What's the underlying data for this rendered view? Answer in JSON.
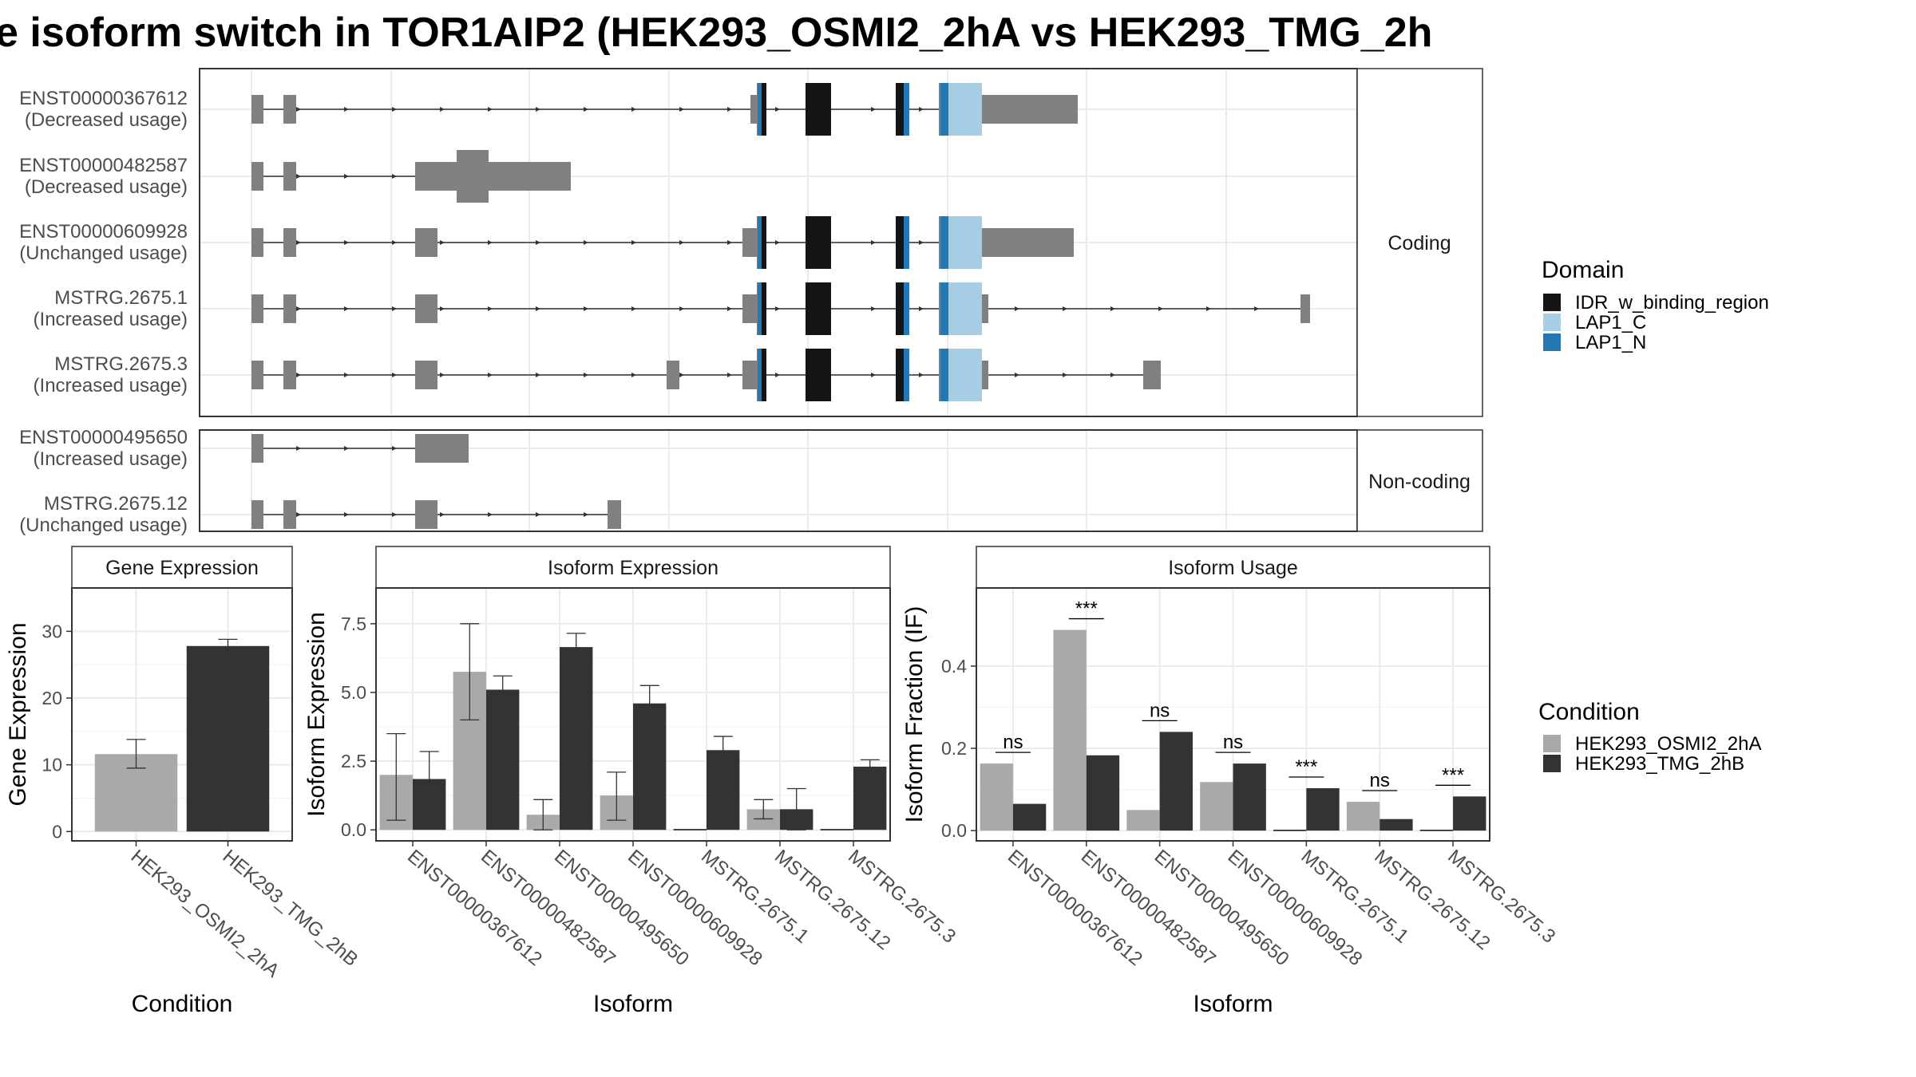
{
  "title": "e isoform switch in TOR1AIP2 (HEK293_OSMI2_2hA vs HEK293_TMG_2h",
  "colors": {
    "exon": "#808080",
    "IDR_w_binding_region": "#151515",
    "LAP1_C": "#a6cde3",
    "LAP1_N": "#2478b3",
    "HEK293_OSMI2_2hA": "#a9a9a9",
    "HEK293_TMG_2hB": "#333333",
    "grid": "#ebebeb",
    "panel_border": "#333333"
  },
  "structure": {
    "coding_strip": "Coding",
    "noncoding_strip": "Non-coding",
    "transcripts": [
      {
        "id": "ENST00000367612",
        "usage": "(Decreased usage)",
        "group": "coding"
      },
      {
        "id": "ENST00000482587",
        "usage": "(Decreased usage)",
        "group": "coding"
      },
      {
        "id": "ENST00000609928",
        "usage": "(Unchanged usage)",
        "group": "coding"
      },
      {
        "id": "MSTRG.2675.1",
        "usage": "(Increased usage)",
        "group": "coding"
      },
      {
        "id": "MSTRG.2675.3",
        "usage": "(Increased usage)",
        "group": "coding"
      },
      {
        "id": "ENST00000495650",
        "usage": "(Increased usage)",
        "group": "noncoding"
      },
      {
        "id": "MSTRG.2675.12",
        "usage": "(Unchanged usage)",
        "group": "noncoding"
      }
    ]
  },
  "legend_domain": {
    "title": "Domain",
    "items": [
      {
        "label": "IDR_w_binding_region",
        "color_key": "IDR_w_binding_region"
      },
      {
        "label": "LAP1_C",
        "color_key": "LAP1_C"
      },
      {
        "label": "LAP1_N",
        "color_key": "LAP1_N"
      }
    ]
  },
  "legend_condition": {
    "title": "Condition",
    "items": [
      {
        "label": "HEK293_OSMI2_2hA",
        "color_key": "HEK293_OSMI2_2hA"
      },
      {
        "label": "HEK293_TMG_2hB",
        "color_key": "HEK293_TMG_2hB"
      }
    ]
  },
  "chart_data": [
    {
      "type": "bar",
      "title": "Gene Expression",
      "xlabel": "Condition",
      "ylabel": "Gene Expression",
      "categories": [
        "HEK293_OSMI2_2hA",
        "HEK293_TMG_2hB"
      ],
      "values": [
        11.6,
        27.8
      ],
      "error_low": [
        9.5,
        26.8
      ],
      "error_high": [
        13.8,
        28.8
      ],
      "ylim": [
        -1.4,
        36.5
      ],
      "yticks": [
        0,
        10,
        20,
        30
      ],
      "ytick_labels": [
        "0",
        "10",
        "20",
        "30"
      ]
    },
    {
      "type": "bar",
      "title": "Isoform Expression",
      "xlabel": "Isoform",
      "ylabel": "Isoform Expression",
      "categories": [
        "ENST00000367612",
        "ENST00000482587",
        "ENST00000495650",
        "ENST00000609928",
        "MSTRG.2675.1",
        "MSTRG.2675.12",
        "MSTRG.2675.3"
      ],
      "series": [
        {
          "name": "HEK293_OSMI2_2hA",
          "values": [
            2.0,
            5.75,
            0.55,
            1.25,
            0.0,
            0.75,
            0.0
          ],
          "error_low": [
            0.35,
            4.0,
            0.0,
            0.35,
            null,
            0.4,
            null
          ],
          "error_high": [
            3.5,
            7.5,
            1.1,
            2.1,
            null,
            1.1,
            null
          ]
        },
        {
          "name": "HEK293_TMG_2hB",
          "values": [
            1.85,
            5.1,
            6.65,
            4.6,
            2.9,
            0.75,
            2.3
          ],
          "error_low": [
            0.85,
            4.6,
            6.15,
            3.95,
            2.4,
            0.0,
            2.05
          ],
          "error_high": [
            2.85,
            5.6,
            7.15,
            5.25,
            3.4,
            1.5,
            2.55
          ]
        }
      ],
      "ylim": [
        -0.4,
        8.8
      ],
      "yticks": [
        0,
        2.5,
        5,
        7.5
      ],
      "ytick_labels": [
        "0.0",
        "2.5",
        "5.0",
        "7.5"
      ]
    },
    {
      "type": "bar",
      "title": "Isoform Usage",
      "xlabel": "Isoform",
      "ylabel": "Isoform Fraction (IF)",
      "categories": [
        "ENST00000367612",
        "ENST00000482587",
        "ENST00000495650",
        "ENST00000609928",
        "MSTRG.2675.1",
        "MSTRG.2675.12",
        "MSTRG.2675.3"
      ],
      "series": [
        {
          "name": "HEK293_OSMI2_2hA",
          "values": [
            0.163,
            0.488,
            0.05,
            0.118,
            0.0,
            0.07,
            0.0
          ]
        },
        {
          "name": "HEK293_TMG_2hB",
          "values": [
            0.065,
            0.183,
            0.24,
            0.163,
            0.103,
            0.028,
            0.083
          ]
        }
      ],
      "significance": [
        "ns",
        "***",
        "ns",
        "ns",
        "***",
        "ns",
        "***"
      ],
      "ylim": [
        -0.025,
        0.59
      ],
      "yticks": [
        0,
        0.2,
        0.4
      ],
      "ytick_labels": [
        "0.0",
        "0.2",
        "0.4"
      ]
    }
  ]
}
